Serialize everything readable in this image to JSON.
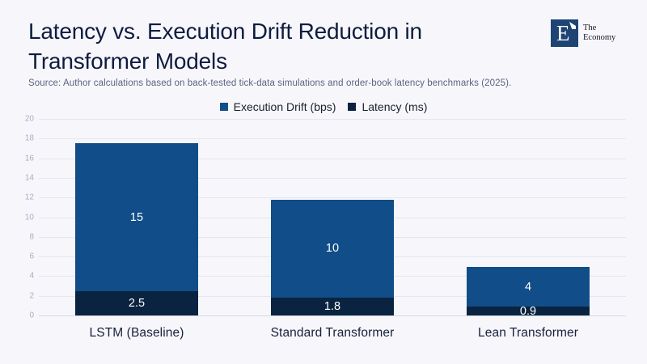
{
  "header": {
    "title_line1": "Latency vs. Execution Drift Reduction in",
    "title_line2": "Transformer Models",
    "source": "Source: Author calculations based on back-tested tick-data simulations and order-book latency benchmarks (2025).",
    "logo": {
      "letter": "E",
      "text_line1": "The",
      "text_line2": "Economy"
    }
  },
  "colors": {
    "background": "#f7f7fb",
    "execution_drift": "#114d88",
    "latency": "#0a2340",
    "title_text": "#0f1c3f",
    "source_text": "#5b6480",
    "gridline": "#e4e7ef",
    "axis_baseline": "#d5d9e1",
    "y_tick_text": "#a7aec2",
    "x_label_text": "#17203c",
    "bar_value_text": "#ffffff",
    "logo_square": "#1e4474"
  },
  "chart_data": {
    "type": "bar",
    "stacked": true,
    "title": "Latency vs. Execution Drift Reduction in Transformer Models",
    "categories": [
      "LSTM (Baseline)",
      "Standard Transformer",
      "Lean Transformer"
    ],
    "series": [
      {
        "name": "Execution Drift (bps)",
        "color": "#114d88",
        "values": [
          15,
          10,
          4
        ]
      },
      {
        "name": "Latency (ms)",
        "color": "#0a2340",
        "values": [
          2.5,
          1.8,
          0.9
        ]
      }
    ],
    "stack_order_bottom_to_top": [
      "Latency (ms)",
      "Execution Drift (bps)"
    ],
    "ylim": [
      0,
      20
    ],
    "ytick_step": 2,
    "grid": true,
    "legend_position": "top-center",
    "xlabel": "",
    "ylabel": ""
  }
}
